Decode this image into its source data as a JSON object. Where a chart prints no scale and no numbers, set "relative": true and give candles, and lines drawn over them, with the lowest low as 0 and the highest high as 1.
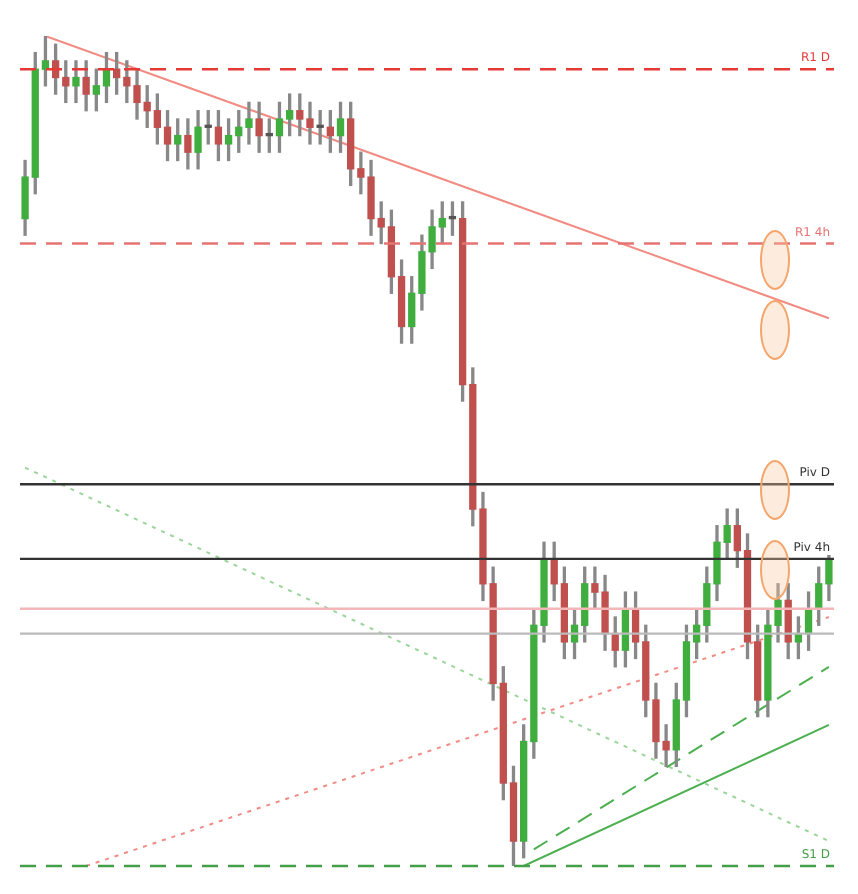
{
  "chart_data": {
    "type": "candlestick",
    "relative": true,
    "legend": false,
    "categories": [
      null,
      null,
      null,
      null,
      null,
      null,
      null,
      null,
      null,
      null,
      null,
      null,
      null,
      null,
      null,
      null,
      null,
      null,
      null,
      null,
      null,
      null,
      null,
      null,
      null,
      null,
      null,
      null,
      null,
      null,
      null,
      null,
      null,
      null,
      null,
      null,
      null,
      null,
      null,
      null,
      null,
      null,
      null,
      null,
      null,
      null,
      null,
      null,
      null,
      null,
      null,
      null,
      null,
      null,
      null,
      null,
      null,
      null,
      null,
      null,
      null,
      null,
      null,
      null,
      null,
      null,
      null,
      null,
      null,
      null,
      null,
      null,
      null,
      null,
      null,
      null,
      null,
      null,
      null,
      null
    ],
    "ohlc": [
      [
        0.78,
        0.85,
        0.76,
        0.83
      ],
      [
        0.83,
        0.98,
        0.81,
        0.96
      ],
      [
        0.96,
        1.0,
        0.94,
        0.97
      ],
      [
        0.97,
        0.99,
        0.93,
        0.95
      ],
      [
        0.95,
        0.97,
        0.92,
        0.94
      ],
      [
        0.94,
        0.97,
        0.92,
        0.95
      ],
      [
        0.95,
        0.97,
        0.91,
        0.93
      ],
      [
        0.93,
        0.96,
        0.91,
        0.94
      ],
      [
        0.94,
        0.98,
        0.92,
        0.96
      ],
      [
        0.96,
        0.98,
        0.93,
        0.95
      ],
      [
        0.95,
        0.97,
        0.92,
        0.94
      ],
      [
        0.94,
        0.96,
        0.9,
        0.92
      ],
      [
        0.92,
        0.94,
        0.89,
        0.91
      ],
      [
        0.91,
        0.93,
        0.87,
        0.89
      ],
      [
        0.89,
        0.91,
        0.85,
        0.87
      ],
      [
        0.87,
        0.9,
        0.85,
        0.88
      ],
      [
        0.88,
        0.9,
        0.84,
        0.86
      ],
      [
        0.86,
        0.91,
        0.84,
        0.89
      ],
      [
        0.89,
        0.91,
        0.87,
        0.89
      ],
      [
        0.89,
        0.91,
        0.85,
        0.87
      ],
      [
        0.87,
        0.9,
        0.85,
        0.88
      ],
      [
        0.88,
        0.91,
        0.86,
        0.89
      ],
      [
        0.89,
        0.92,
        0.87,
        0.9
      ],
      [
        0.9,
        0.92,
        0.86,
        0.88
      ],
      [
        0.88,
        0.9,
        0.86,
        0.88
      ],
      [
        0.88,
        0.92,
        0.86,
        0.9
      ],
      [
        0.9,
        0.93,
        0.88,
        0.91
      ],
      [
        0.91,
        0.93,
        0.88,
        0.9
      ],
      [
        0.9,
        0.92,
        0.87,
        0.89
      ],
      [
        0.89,
        0.91,
        0.87,
        0.89
      ],
      [
        0.89,
        0.91,
        0.86,
        0.88
      ],
      [
        0.88,
        0.92,
        0.86,
        0.9
      ],
      [
        0.9,
        0.92,
        0.82,
        0.84
      ],
      [
        0.84,
        0.86,
        0.81,
        0.83
      ],
      [
        0.83,
        0.85,
        0.76,
        0.78
      ],
      [
        0.78,
        0.8,
        0.75,
        0.77
      ],
      [
        0.77,
        0.79,
        0.69,
        0.71
      ],
      [
        0.71,
        0.73,
        0.63,
        0.65
      ],
      [
        0.65,
        0.71,
        0.63,
        0.69
      ],
      [
        0.69,
        0.76,
        0.67,
        0.74
      ],
      [
        0.74,
        0.79,
        0.72,
        0.77
      ],
      [
        0.77,
        0.8,
        0.75,
        0.78
      ],
      [
        0.78,
        0.8,
        0.76,
        0.78
      ],
      [
        0.78,
        0.8,
        0.56,
        0.58
      ],
      [
        0.58,
        0.6,
        0.41,
        0.43
      ],
      [
        0.43,
        0.45,
        0.32,
        0.34
      ],
      [
        0.34,
        0.36,
        0.2,
        0.22
      ],
      [
        0.22,
        0.24,
        0.08,
        0.1
      ],
      [
        0.1,
        0.12,
        0.0,
        0.03
      ],
      [
        0.03,
        0.17,
        0.01,
        0.15
      ],
      [
        0.15,
        0.31,
        0.13,
        0.29
      ],
      [
        0.29,
        0.39,
        0.27,
        0.37
      ],
      [
        0.37,
        0.39,
        0.32,
        0.34
      ],
      [
        0.34,
        0.36,
        0.25,
        0.27
      ],
      [
        0.27,
        0.31,
        0.25,
        0.29
      ],
      [
        0.29,
        0.36,
        0.27,
        0.34
      ],
      [
        0.34,
        0.36,
        0.31,
        0.33
      ],
      [
        0.33,
        0.35,
        0.26,
        0.28
      ],
      [
        0.28,
        0.3,
        0.24,
        0.26
      ],
      [
        0.26,
        0.33,
        0.24,
        0.31
      ],
      [
        0.31,
        0.33,
        0.25,
        0.27
      ],
      [
        0.27,
        0.29,
        0.18,
        0.2
      ],
      [
        0.2,
        0.22,
        0.13,
        0.15
      ],
      [
        0.15,
        0.17,
        0.12,
        0.14
      ],
      [
        0.14,
        0.22,
        0.12,
        0.2
      ],
      [
        0.2,
        0.29,
        0.18,
        0.27
      ],
      [
        0.27,
        0.31,
        0.25,
        0.29
      ],
      [
        0.29,
        0.36,
        0.27,
        0.34
      ],
      [
        0.34,
        0.41,
        0.32,
        0.39
      ],
      [
        0.39,
        0.43,
        0.37,
        0.41
      ],
      [
        0.41,
        0.43,
        0.36,
        0.38
      ],
      [
        0.38,
        0.4,
        0.25,
        0.27
      ],
      [
        0.27,
        0.29,
        0.18,
        0.2
      ],
      [
        0.2,
        0.31,
        0.18,
        0.29
      ],
      [
        0.29,
        0.34,
        0.27,
        0.32
      ],
      [
        0.32,
        0.34,
        0.25,
        0.27
      ],
      [
        0.27,
        0.3,
        0.25,
        0.28
      ],
      [
        0.28,
        0.33,
        0.26,
        0.31
      ],
      [
        0.31,
        0.36,
        0.29,
        0.34
      ],
      [
        0.34,
        0.39,
        0.32,
        0.37
      ]
    ],
    "series": [
      {
        "type": "line",
        "color": "#f28b82",
        "line_style": "solid",
        "values": [
          null,
          null,
          1.0,
          null,
          null,
          null,
          null,
          null,
          null,
          null,
          null,
          null,
          null,
          null,
          null,
          null,
          null,
          null,
          null,
          null,
          null,
          null,
          null,
          null,
          null,
          null,
          null,
          null,
          null,
          null,
          null,
          null,
          null,
          null,
          null,
          null,
          null,
          null,
          null,
          null,
          null,
          null,
          null,
          null,
          null,
          null,
          null,
          null,
          null,
          null,
          null,
          null,
          null,
          null,
          null,
          null,
          null,
          null,
          null,
          null,
          null,
          null,
          null,
          null,
          null,
          null,
          null,
          null,
          null,
          null,
          null,
          null,
          null,
          null,
          null,
          null,
          null,
          null,
          null,
          0.66
        ]
      },
      {
        "type": "line",
        "color": "#4caf50",
        "line_style": "solid",
        "values": [
          null,
          null,
          null,
          null,
          null,
          null,
          null,
          null,
          null,
          null,
          null,
          null,
          null,
          null,
          null,
          null,
          null,
          null,
          null,
          null,
          null,
          null,
          null,
          null,
          null,
          null,
          null,
          null,
          null,
          null,
          null,
          null,
          null,
          null,
          null,
          null,
          null,
          null,
          null,
          null,
          null,
          null,
          null,
          null,
          null,
          null,
          null,
          null,
          null,
          0.0,
          null,
          null,
          null,
          null,
          null,
          null,
          null,
          null,
          null,
          null,
          null,
          null,
          null,
          null,
          null,
          null,
          null,
          null,
          null,
          null,
          null,
          null,
          null,
          null,
          null,
          null,
          null,
          null,
          null,
          0.17
        ]
      },
      {
        "type": "line",
        "color": "#4caf50",
        "line_style": "dashed",
        "values": [
          null,
          null,
          null,
          null,
          null,
          null,
          null,
          null,
          null,
          null,
          null,
          null,
          null,
          null,
          null,
          null,
          null,
          null,
          null,
          null,
          null,
          null,
          null,
          null,
          null,
          null,
          null,
          null,
          null,
          null,
          null,
          null,
          null,
          null,
          null,
          null,
          null,
          null,
          null,
          null,
          null,
          null,
          null,
          null,
          null,
          null,
          null,
          null,
          null,
          null,
          0.02,
          null,
          null,
          null,
          null,
          null,
          null,
          null,
          null,
          null,
          null,
          null,
          null,
          null,
          null,
          null,
          null,
          null,
          null,
          null,
          null,
          null,
          null,
          null,
          null,
          null,
          null,
          null,
          null,
          0.24
        ]
      },
      {
        "type": "line",
        "color": "#f28b82",
        "line_style": "dotted",
        "values": [
          null,
          null,
          null,
          null,
          null,
          null,
          0.0,
          null,
          null,
          null,
          null,
          null,
          null,
          null,
          null,
          null,
          null,
          null,
          null,
          null,
          null,
          null,
          null,
          null,
          null,
          null,
          null,
          null,
          null,
          null,
          null,
          null,
          null,
          null,
          null,
          null,
          null,
          null,
          null,
          null,
          null,
          null,
          null,
          null,
          null,
          null,
          null,
          null,
          null,
          null,
          null,
          null,
          null,
          null,
          null,
          null,
          null,
          null,
          null,
          null,
          null,
          null,
          null,
          null,
          null,
          null,
          null,
          null,
          null,
          null,
          null,
          null,
          null,
          null,
          null,
          null,
          null,
          null,
          null,
          0.3
        ]
      },
      {
        "type": "line",
        "color": "#9ad69a",
        "line_style": "dotted",
        "values": [
          0.48,
          null,
          null,
          null,
          null,
          null,
          null,
          null,
          null,
          null,
          null,
          null,
          null,
          null,
          null,
          null,
          null,
          null,
          null,
          null,
          null,
          null,
          null,
          null,
          null,
          null,
          null,
          null,
          null,
          null,
          null,
          null,
          null,
          null,
          null,
          null,
          null,
          null,
          null,
          null,
          null,
          null,
          null,
          null,
          null,
          null,
          null,
          null,
          null,
          null,
          null,
          null,
          null,
          null,
          null,
          null,
          null,
          null,
          null,
          null,
          null,
          null,
          null,
          null,
          null,
          null,
          null,
          null,
          null,
          null,
          null,
          null,
          null,
          null,
          null,
          null,
          null,
          null,
          null,
          0.03
        ]
      }
    ],
    "ref_lines": [
      {
        "axis": "y",
        "value": 0.96,
        "label": "R1 D",
        "color": "#e53935",
        "line_style": "dashed"
      },
      {
        "axis": "y",
        "value": 0.75,
        "label": "R1 4h",
        "color": "#e57373",
        "line_style": "dashed"
      },
      {
        "axis": "y",
        "value": 0.46,
        "label": "Piv D",
        "color": "#333333",
        "line_style": "solid"
      },
      {
        "axis": "y",
        "value": 0.37,
        "label": "Piv 4h",
        "color": "#333333",
        "line_style": "solid"
      },
      {
        "axis": "y",
        "value": 0.31,
        "color": "#f4b6b6",
        "line_style": "solid"
      },
      {
        "axis": "y",
        "value": 0.28,
        "color": "#bbbbbb",
        "line_style": "solid"
      },
      {
        "axis": "y",
        "value": 0.0,
        "label": "S1 D",
        "color": "#43a047",
        "line_style": "dashed"
      }
    ]
  }
}
